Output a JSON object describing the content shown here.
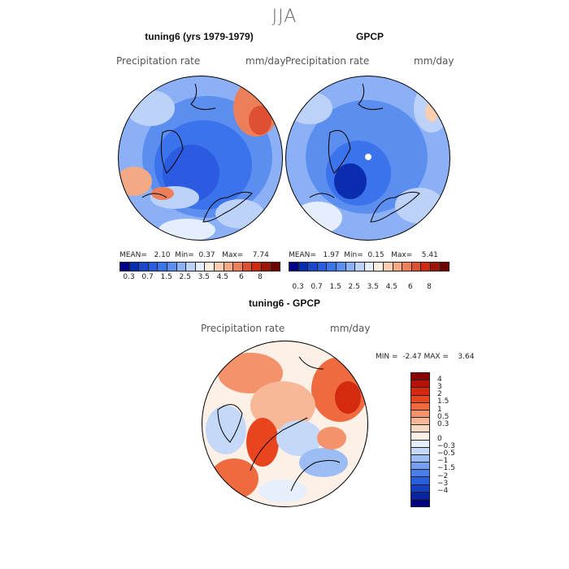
{
  "season": "JJA",
  "panels": [
    {
      "title": "tuning6 (yrs 1979-1979)",
      "variable": "Precipitation rate",
      "units": "mm/day",
      "stats": {
        "mean_label": "MEAN=",
        "mean": "2.10",
        "min_label": "Min=",
        "min": "0.37",
        "max_label": "Max=",
        "max": "7.74"
      }
    },
    {
      "title": "GPCP",
      "variable": "Precipitation rate",
      "units": "mm/day",
      "stats": {
        "mean_label": "MEAN=",
        "mean": "1.97",
        "min_label": "Min=",
        "min": "0.15",
        "max_label": "Max=",
        "max": "5.41"
      }
    }
  ],
  "abs_colorbar": {
    "colors": [
      "#00008b",
      "#0a2db0",
      "#1e46cc",
      "#2a5be0",
      "#3a73ec",
      "#5c8ef0",
      "#8cb0f5",
      "#bcd2f9",
      "#e4eefc",
      "#fdeee2",
      "#f9cdb0",
      "#f3a886",
      "#ec7f5a",
      "#df5032",
      "#cc2a12",
      "#a0140a",
      "#6e0000"
    ],
    "tick_labels": [
      "0.3",
      "0.7",
      "1.5",
      "2.5",
      "3.5",
      "4.5",
      "6",
      "8"
    ]
  },
  "diff": {
    "title": "tuning6 - GPCP",
    "variable": "Precipitation rate",
    "units": "mm/day",
    "stats": {
      "min_label": "MIN =",
      "min": "-2.47",
      "max_label": "MAX =",
      "max": "3.64"
    },
    "colorbar_colors": [
      "#8b0000",
      "#b41208",
      "#d42a10",
      "#e8441e",
      "#f06a40",
      "#f4926c",
      "#f8b898",
      "#fbd8c2",
      "#fdf0e6",
      "#e6effc",
      "#c4d8f8",
      "#9cbcf4",
      "#749ef0",
      "#4c7ee8",
      "#2a5edc",
      "#1440c4",
      "#0a24a0",
      "#000080"
    ],
    "tick_labels": [
      "4",
      "3",
      "2",
      "1.5",
      "1",
      "0.5",
      "0.3",
      "0",
      "−0.3",
      "−0.5",
      "−1",
      "−1.5",
      "−2",
      "−3",
      "−4"
    ]
  }
}
